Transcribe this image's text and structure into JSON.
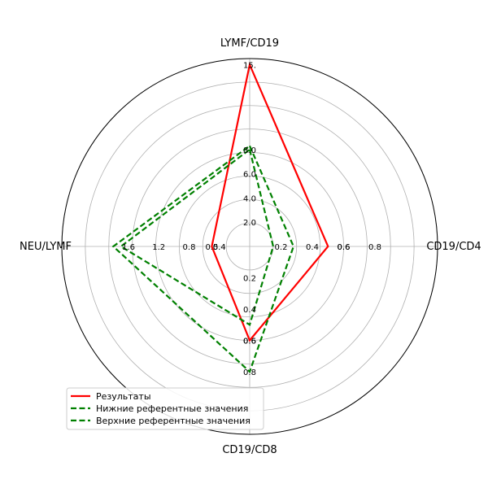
{
  "chart_data": {
    "type": "radar",
    "axes": [
      "LYMF/CD19",
      "CD19/CD4",
      "CD19/CD8",
      "NEU/LYMF"
    ],
    "series": [
      {
        "name": "Результаты",
        "color": "#ff0000",
        "dash": "solid",
        "values": [
          15.0,
          0.5,
          0.6,
          0.5
        ]
      },
      {
        "name": "Нижние референтные значения",
        "color": "#008000",
        "dash": "dashed",
        "values": [
          8.0,
          0.15,
          0.5,
          1.7
        ]
      },
      {
        "name": "Верхние референтные значения",
        "color": "#008000",
        "dash": "dashed",
        "values": [
          8.3,
          0.28,
          0.8,
          1.8
        ]
      }
    ],
    "ticks": {
      "LYMF/CD19": {
        "labels": [
          "2.0",
          "4.0",
          "6.0",
          "8.0",
          "15."
        ],
        "values": [
          2,
          4,
          6,
          8,
          15
        ],
        "max": 15.5
      },
      "CD19/CD4": {
        "labels": [
          "0.2",
          "0.4",
          "0.6",
          "0.6",
          "0.8"
        ],
        "values": [
          0.2,
          0.4,
          0.6,
          0.6,
          0.8
        ],
        "max": 1.2
      },
      "CD19/CD8": {
        "labels": [
          "0.2",
          "0.4",
          "0.6",
          "0.6",
          "0.8"
        ],
        "values": [
          0.2,
          0.4,
          0.6,
          0.6,
          0.8
        ],
        "max": 1.2
      },
      "NEU/LYMF": {
        "labels": [
          "0.4",
          "0.5",
          "0.8",
          "1.2",
          "1.6"
        ],
        "values": [
          0.4,
          0.5,
          0.8,
          1.2,
          1.6
        ],
        "max": 2.48
      }
    },
    "grid": true,
    "legend_position": "lower-left"
  }
}
